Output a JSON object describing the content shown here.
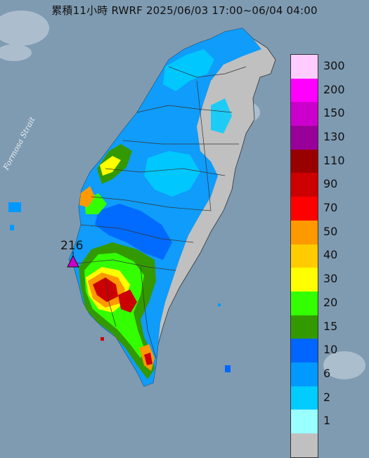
{
  "title": "累積11小時 RWRF 2025/06/03 17:00~06/04 04:00",
  "strait_label": "Formosa Strait",
  "max_value_label": "216",
  "legend": {
    "items": [
      {
        "label": "300",
        "color": "#ffccff"
      },
      {
        "label": "200",
        "color": "#ff00ff"
      },
      {
        "label": "150",
        "color": "#cc00cc"
      },
      {
        "label": "130",
        "color": "#990099"
      },
      {
        "label": "110",
        "color": "#990000"
      },
      {
        "label": "90",
        "color": "#cc0000"
      },
      {
        "label": "70",
        "color": "#ff0000"
      },
      {
        "label": "50",
        "color": "#ff9900"
      },
      {
        "label": "40",
        "color": "#ffcc00"
      },
      {
        "label": "30",
        "color": "#ffff00"
      },
      {
        "label": "20",
        "color": "#33ff00"
      },
      {
        "label": "15",
        "color": "#339900"
      },
      {
        "label": "10",
        "color": "#0066ff"
      },
      {
        "label": "6",
        "color": "#0099ff"
      },
      {
        "label": "2",
        "color": "#00ccff"
      },
      {
        "label": "1",
        "color": "#99ffff"
      },
      {
        "label": "",
        "color": "#c0c0c0"
      }
    ]
  },
  "colors": {
    "sea": "#7f9bb2",
    "no_rain": "#c0c0c0",
    "light_blue": "#00ccff",
    "blue": "#0099ff",
    "dark_blue": "#0066ff",
    "green": "#339900",
    "lime": "#33ff00",
    "yellow": "#ffff00",
    "orange": "#ff9900",
    "red": "#cc0000",
    "max_marker": "#cc00cc"
  }
}
